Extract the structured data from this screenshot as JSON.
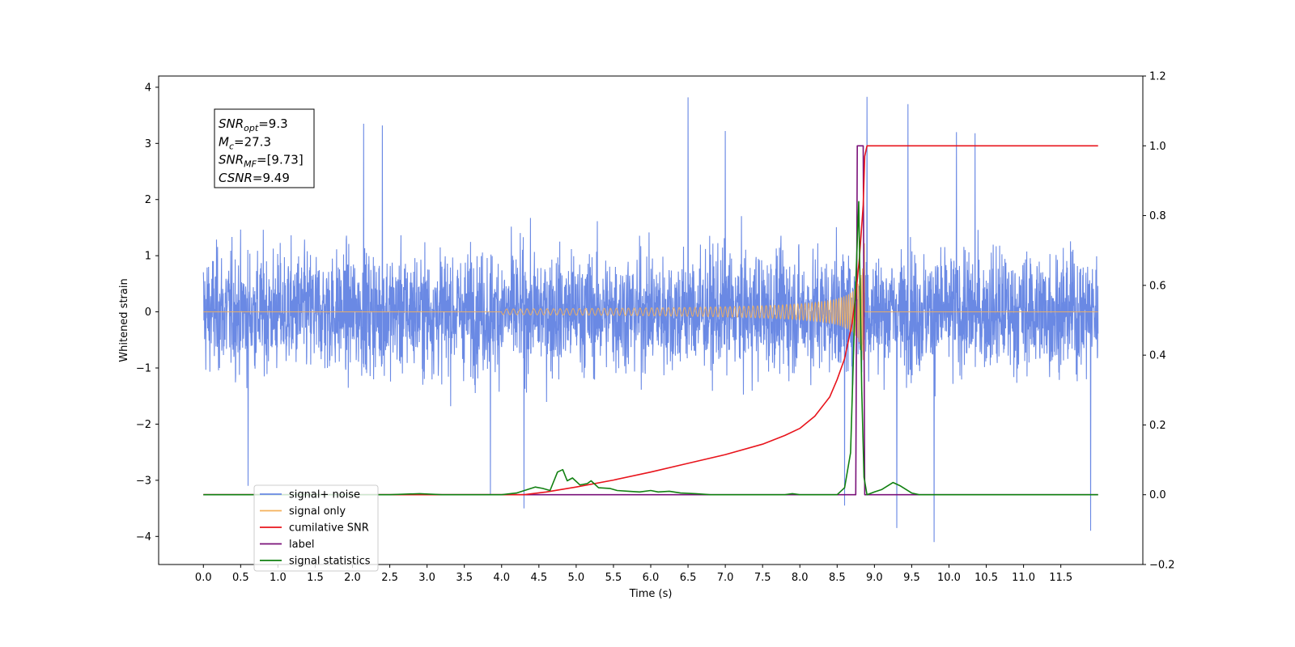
{
  "chart_data": {
    "type": "line",
    "xlabel": "Time (s)",
    "ylabel": "Whitened strain",
    "xlim": [
      -0.6,
      12.6
    ],
    "ylim": [
      -4.5,
      4.2
    ],
    "y2lim": [
      -0.2,
      1.2
    ],
    "x_ticks": [
      0.0,
      0.5,
      1.0,
      1.5,
      2.0,
      2.5,
      3.0,
      3.5,
      4.0,
      4.5,
      5.0,
      5.5,
      6.0,
      6.5,
      7.0,
      7.5,
      8.0,
      8.5,
      9.0,
      9.5,
      10.0,
      10.5,
      11.0,
      11.5
    ],
    "x_tick_labels": [
      "0.0",
      "0.5",
      "1.0",
      "1.5",
      "2.0",
      "2.5",
      "3.0",
      "3.5",
      "4.0",
      "4.5",
      "5.0",
      "5.5",
      "6.0",
      "6.5",
      "7.0",
      "7.5",
      "8.0",
      "8.5",
      "9.0",
      "9.5",
      "10.0",
      "10.5",
      "11.0",
      "11.5"
    ],
    "y_ticks": [
      -4,
      -3,
      -2,
      -1,
      0,
      1,
      2,
      3,
      4
    ],
    "y_tick_labels": [
      "−4",
      "−3",
      "−2",
      "−1",
      "0",
      "1",
      "2",
      "3",
      "4"
    ],
    "y2_ticks": [
      -0.2,
      0.0,
      0.2,
      0.4,
      0.6,
      0.8,
      1.0,
      1.2
    ],
    "y2_tick_labels": [
      "−0.2",
      "0.0",
      "0.2",
      "0.4",
      "0.6",
      "0.8",
      "1.0",
      "1.2"
    ],
    "legend_position": "lower-left",
    "grid": false,
    "series": [
      {
        "name": "signal+ noise",
        "axis": "left",
        "color": "#6a89e4",
        "kind": "noise",
        "x_range": [
          0.0,
          12.0
        ],
        "typical_amplitude": 1.6,
        "spikes": [
          {
            "x": 6.5,
            "y": 3.82
          },
          {
            "x": 8.9,
            "y": 3.83
          },
          {
            "x": 9.45,
            "y": 3.7
          },
          {
            "x": 2.15,
            "y": 3.35
          },
          {
            "x": 2.4,
            "y": 3.32
          },
          {
            "x": 7.0,
            "y": 3.22
          },
          {
            "x": 10.1,
            "y": 3.2
          },
          {
            "x": 10.35,
            "y": 3.18
          },
          {
            "x": 4.3,
            "y": -3.5
          },
          {
            "x": 9.8,
            "y": -4.1
          },
          {
            "x": 11.9,
            "y": -3.9
          },
          {
            "x": 9.3,
            "y": -3.85
          },
          {
            "x": 8.6,
            "y": -3.45
          },
          {
            "x": 3.85,
            "y": -3.25
          },
          {
            "x": 0.6,
            "y": -3.1
          }
        ]
      },
      {
        "name": "signal only",
        "axis": "left",
        "color": "#f5b05a",
        "kind": "chirp",
        "x_range": [
          0.0,
          12.0
        ],
        "merger_x": 8.87,
        "peak_amplitude": 1.4
      },
      {
        "name": "cumilative SNR",
        "axis": "right",
        "color": "#e8141c",
        "x": [
          0.0,
          4.3,
          4.6,
          5.0,
          5.5,
          6.0,
          6.5,
          7.0,
          7.5,
          7.8,
          8.0,
          8.2,
          8.4,
          8.5,
          8.6,
          8.7,
          8.75,
          8.8,
          8.85,
          8.87,
          8.9,
          9.5,
          10.0,
          11.0,
          12.0
        ],
        "y": [
          0.0,
          0.0,
          0.008,
          0.022,
          0.042,
          0.065,
          0.09,
          0.115,
          0.145,
          0.17,
          0.19,
          0.225,
          0.28,
          0.33,
          0.39,
          0.49,
          0.57,
          0.68,
          0.83,
          0.97,
          1.0,
          1.0,
          1.0,
          1.0,
          1.0
        ]
      },
      {
        "name": "label",
        "axis": "right",
        "color": "#7a1179",
        "x": [
          0.0,
          8.75,
          8.77,
          8.85,
          8.87,
          12.0
        ],
        "y": [
          0.0,
          0.0,
          1.0,
          1.0,
          0.0,
          0.0
        ]
      },
      {
        "name": "signal statistics",
        "axis": "right",
        "color": "#118011",
        "x": [
          0.0,
          2.5,
          2.9,
          3.2,
          4.0,
          4.2,
          4.45,
          4.55,
          4.65,
          4.75,
          4.82,
          4.88,
          4.95,
          5.05,
          5.15,
          5.2,
          5.3,
          5.45,
          5.55,
          5.7,
          5.85,
          6.0,
          6.1,
          6.25,
          6.4,
          6.6,
          6.8,
          7.8,
          7.9,
          8.0,
          8.5,
          8.6,
          8.68,
          8.74,
          8.79,
          8.83,
          8.86,
          8.9,
          9.0,
          9.1,
          9.25,
          9.35,
          9.5,
          9.6,
          12.0
        ],
        "y": [
          0.0,
          0.0,
          0.003,
          0.0,
          0.0,
          0.005,
          0.022,
          0.018,
          0.012,
          0.065,
          0.072,
          0.04,
          0.048,
          0.028,
          0.032,
          0.04,
          0.02,
          0.018,
          0.012,
          0.01,
          0.008,
          0.012,
          0.008,
          0.01,
          0.005,
          0.003,
          0.0,
          0.0,
          0.003,
          0.0,
          0.0,
          0.02,
          0.12,
          0.55,
          0.84,
          0.3,
          0.05,
          0.0,
          0.008,
          0.015,
          0.035,
          0.025,
          0.005,
          0.0,
          0.0
        ]
      }
    ],
    "legend_entries": [
      {
        "label": "signal+ noise",
        "color": "#6a89e4"
      },
      {
        "label": "signal only",
        "color": "#f5b05a"
      },
      {
        "label": "cumilative SNR",
        "color": "#e8141c"
      },
      {
        "label": "label",
        "color": "#7a1179"
      },
      {
        "label": "signal statistics",
        "color": "#118011"
      }
    ],
    "info_box": [
      {
        "main": "SNR",
        "sub": "opt",
        "rest": "=9.3"
      },
      {
        "main": "M",
        "sub": "c",
        "rest": "=27.3"
      },
      {
        "main": "SNR",
        "sub": "MF",
        "rest": "=[9.73]"
      },
      {
        "main": "CSNR",
        "sub": "",
        "rest": "=9.49"
      }
    ]
  }
}
